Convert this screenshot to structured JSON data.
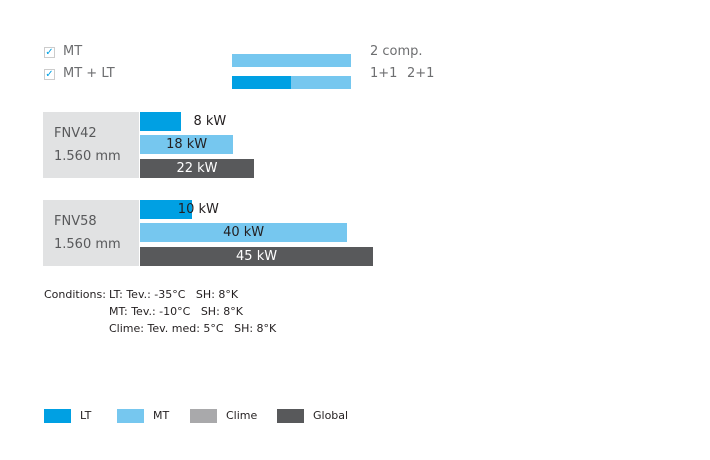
{
  "options": [
    {
      "label": "MT",
      "checked": true
    },
    {
      "label": "MT + LT",
      "checked": true
    }
  ],
  "config": {
    "comp_label": "2 comp.",
    "split_label_1": "1+1",
    "split_label_2": "2+1"
  },
  "colors": {
    "LT": "#00a0e3",
    "MT": "#76c7ef",
    "Clime": "#a9a9ab",
    "Global": "#58595b"
  },
  "chart_data": {
    "type": "bar",
    "unit": "kW",
    "groups": [
      {
        "name": "FNV42",
        "length": "1.560 mm",
        "bars": [
          {
            "series": "LT",
            "value": 8,
            "label": "8 kW"
          },
          {
            "series": "MT",
            "value": 18,
            "label": "18 kW"
          },
          {
            "series": "Global",
            "value": 22,
            "label": "22 kW"
          }
        ]
      },
      {
        "name": "FNV58",
        "length": "1.560 mm",
        "bars": [
          {
            "series": "LT",
            "value": 10,
            "label": "10 kW"
          },
          {
            "series": "MT",
            "value": 40,
            "label": "40 kW"
          },
          {
            "series": "Global",
            "value": 45,
            "label": "45 kW"
          }
        ]
      }
    ],
    "legend": [
      "LT",
      "MT",
      "Clime",
      "Global"
    ]
  },
  "conditions": {
    "title": "Conditions:",
    "lines": [
      "LT: Tev.: -35°C   SH: 8°K",
      "MT: Tev.: -10°C   SH: 8°K",
      "Clime: Tev. med: 5°C   SH: 8°K"
    ]
  }
}
